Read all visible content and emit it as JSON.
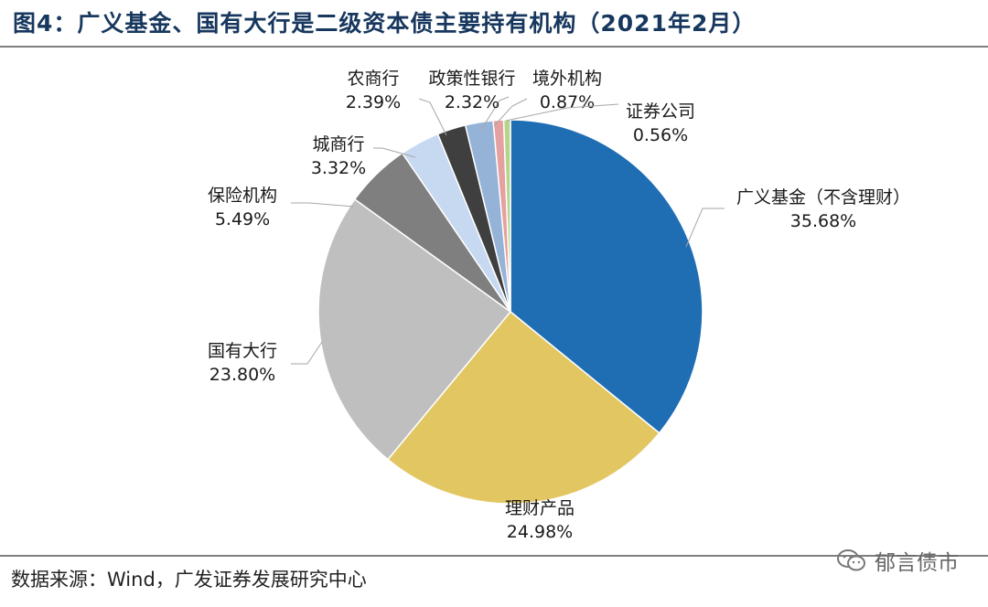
{
  "header": {
    "title": "图4：广义基金、国有大行是二级资本债主要持有机构（2021年2月）"
  },
  "footer": {
    "source": "数据来源：Wind，广发证券发展研究中心",
    "watermark": "郁言债市"
  },
  "icons": {
    "watermark_icon": "wechat-icon"
  },
  "chart_data": {
    "type": "pie",
    "title": "",
    "unit": "%",
    "slices": [
      {
        "name": "广义基金（不含理财）",
        "value": 35.68,
        "label": "35.68%",
        "color": "#1f6eb4"
      },
      {
        "name": "理财产品",
        "value": 24.98,
        "label": "24.98%",
        "color": "#e2c662"
      },
      {
        "name": "国有大行",
        "value": 23.8,
        "label": "23.80%",
        "color": "#bfbfbf"
      },
      {
        "name": "保险机构",
        "value": 5.49,
        "label": "5.49%",
        "color": "#7f7f7f"
      },
      {
        "name": "城商行",
        "value": 3.32,
        "label": "3.32%",
        "color": "#c6d9f1"
      },
      {
        "name": "农商行",
        "value": 2.39,
        "label": "2.39%",
        "color": "#3f3f3f"
      },
      {
        "name": "政策性银行",
        "value": 2.32,
        "label": "2.32%",
        "color": "#95b3d7"
      },
      {
        "name": "境外机构",
        "value": 0.87,
        "label": "0.87%",
        "color": "#e6a0a0"
      },
      {
        "name": "证券公司",
        "value": 0.56,
        "label": "0.56%",
        "color": "#b7d58a"
      }
    ]
  }
}
